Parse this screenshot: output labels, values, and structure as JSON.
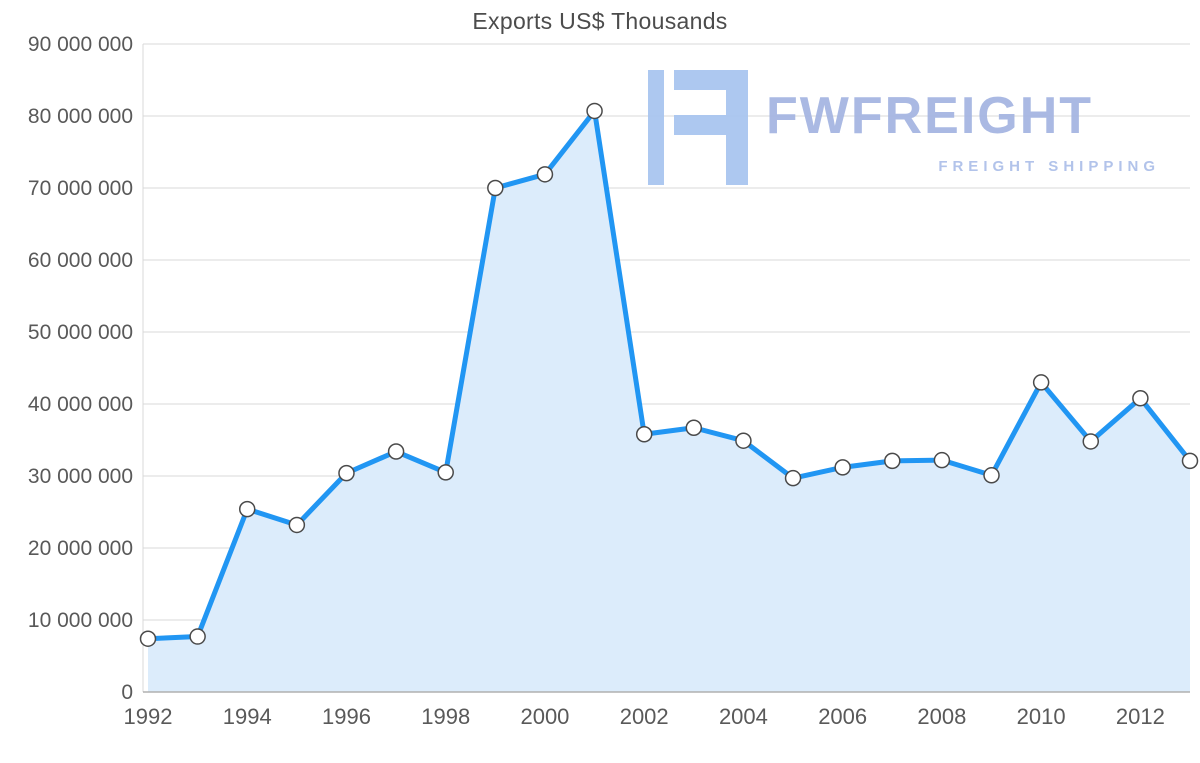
{
  "title": "Exports US$ Thousands",
  "watermark": {
    "brand": "FWFREIGHT",
    "tagline": "FREIGHT SHIPPING",
    "glyph_color": "#a9c6f0",
    "text_color": "#a6b6e2"
  },
  "chart_data": {
    "type": "area",
    "title": "Exports US$ Thousands",
    "x": [
      1992,
      1993,
      1994,
      1995,
      1996,
      1997,
      1998,
      1999,
      2000,
      2001,
      2002,
      2003,
      2004,
      2005,
      2006,
      2007,
      2008,
      2009,
      2010,
      2011,
      2012,
      2013
    ],
    "values": [
      7400000,
      7700000,
      25400000,
      23200000,
      30400000,
      33400000,
      30500000,
      70000000,
      71900000,
      80700000,
      35800000,
      36700000,
      34900000,
      29700000,
      31200000,
      32100000,
      32200000,
      30100000,
      43000000,
      34800000,
      40800000,
      32100000
    ],
    "ylim": [
      0,
      90000000
    ],
    "y_ticks": [
      0,
      10000000,
      20000000,
      30000000,
      40000000,
      50000000,
      60000000,
      70000000,
      80000000,
      90000000
    ],
    "y_tick_labels": [
      "0",
      "10 000 000",
      "20 000 000",
      "30 000 000",
      "40 000 000",
      "50 000 000",
      "60 000 000",
      "70 000 000",
      "80 000 000",
      "90 000 000"
    ],
    "x_ticks": [
      1992,
      1994,
      1996,
      1998,
      2000,
      2002,
      2004,
      2006,
      2008,
      2010,
      2012
    ],
    "x_tick_labels": [
      "1992",
      "1994",
      "1996",
      "1998",
      "2000",
      "2002",
      "2004",
      "2006",
      "2008",
      "2010",
      "2012"
    ],
    "grid": "horizontal",
    "legend": "none",
    "line_color": "#2196f3",
    "fill_color": "#dcecfb",
    "grid_color": "#d9d9d9",
    "axis_color": "#b0b0b0",
    "label_color": "#595959",
    "marker": "circle-white-outline"
  }
}
